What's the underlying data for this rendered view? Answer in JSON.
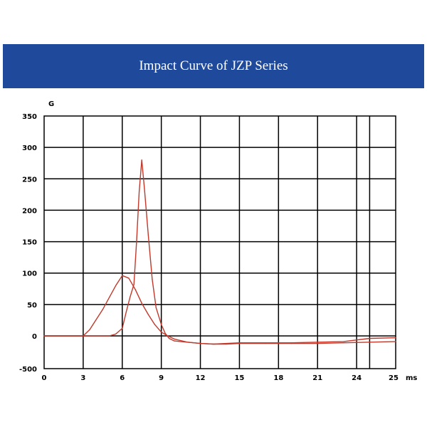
{
  "title": "Impact Curve of JZP Series",
  "chart_data": {
    "type": "line",
    "title": "Impact Curve of JZP Series",
    "xlabel": "ms",
    "ylabel": "G",
    "xlim": [
      0,
      27
    ],
    "ylim": [
      -500,
      350
    ],
    "grid": true,
    "xticks": [
      0,
      3,
      6,
      9,
      12,
      15,
      18,
      21,
      24,
      25
    ],
    "xtick_labels": [
      "0",
      "3",
      "6",
      "9",
      "12",
      "15",
      "18",
      "21",
      "24",
      "25"
    ],
    "yticks": [
      -500,
      0,
      50,
      100,
      150,
      200,
      250,
      300,
      350
    ],
    "ytick_labels": [
      "-500",
      "0",
      "50",
      "100",
      "150",
      "200",
      "250",
      "300",
      "350"
    ],
    "series_color": "#c0392b",
    "series": [
      {
        "x": [
          0,
          3,
          3.5,
          4.5,
          5.5,
          6,
          6.5,
          7,
          7.5,
          8,
          8.5,
          9,
          9.5,
          10,
          11,
          12,
          13,
          14,
          15,
          17,
          19,
          21,
          23,
          25,
          27
        ],
        "y": [
          0,
          0,
          10,
          42,
          80,
          96,
          92,
          74,
          52,
          34,
          18,
          6,
          0,
          -5,
          -10,
          -12,
          -13,
          -13,
          -12,
          -12,
          -12,
          -12,
          -11,
          -10,
          -9
        ]
      },
      {
        "x": [
          0,
          5,
          5.5,
          6,
          6.3,
          6.6,
          6.9,
          7.1,
          7.3,
          7.5,
          7.7,
          8.0,
          8.3,
          8.6,
          9.0,
          9.3,
          9.6,
          10,
          11,
          12,
          13,
          14,
          15,
          17,
          19,
          21,
          23,
          25,
          27
        ],
        "y": [
          0,
          0,
          3,
          12,
          38,
          62,
          82,
          150,
          230,
          280,
          235,
          160,
          90,
          45,
          18,
          4,
          -4,
          -8,
          -10,
          -12,
          -13,
          -12,
          -11,
          -11,
          -11,
          -10,
          -9,
          -4,
          -3
        ]
      }
    ]
  }
}
